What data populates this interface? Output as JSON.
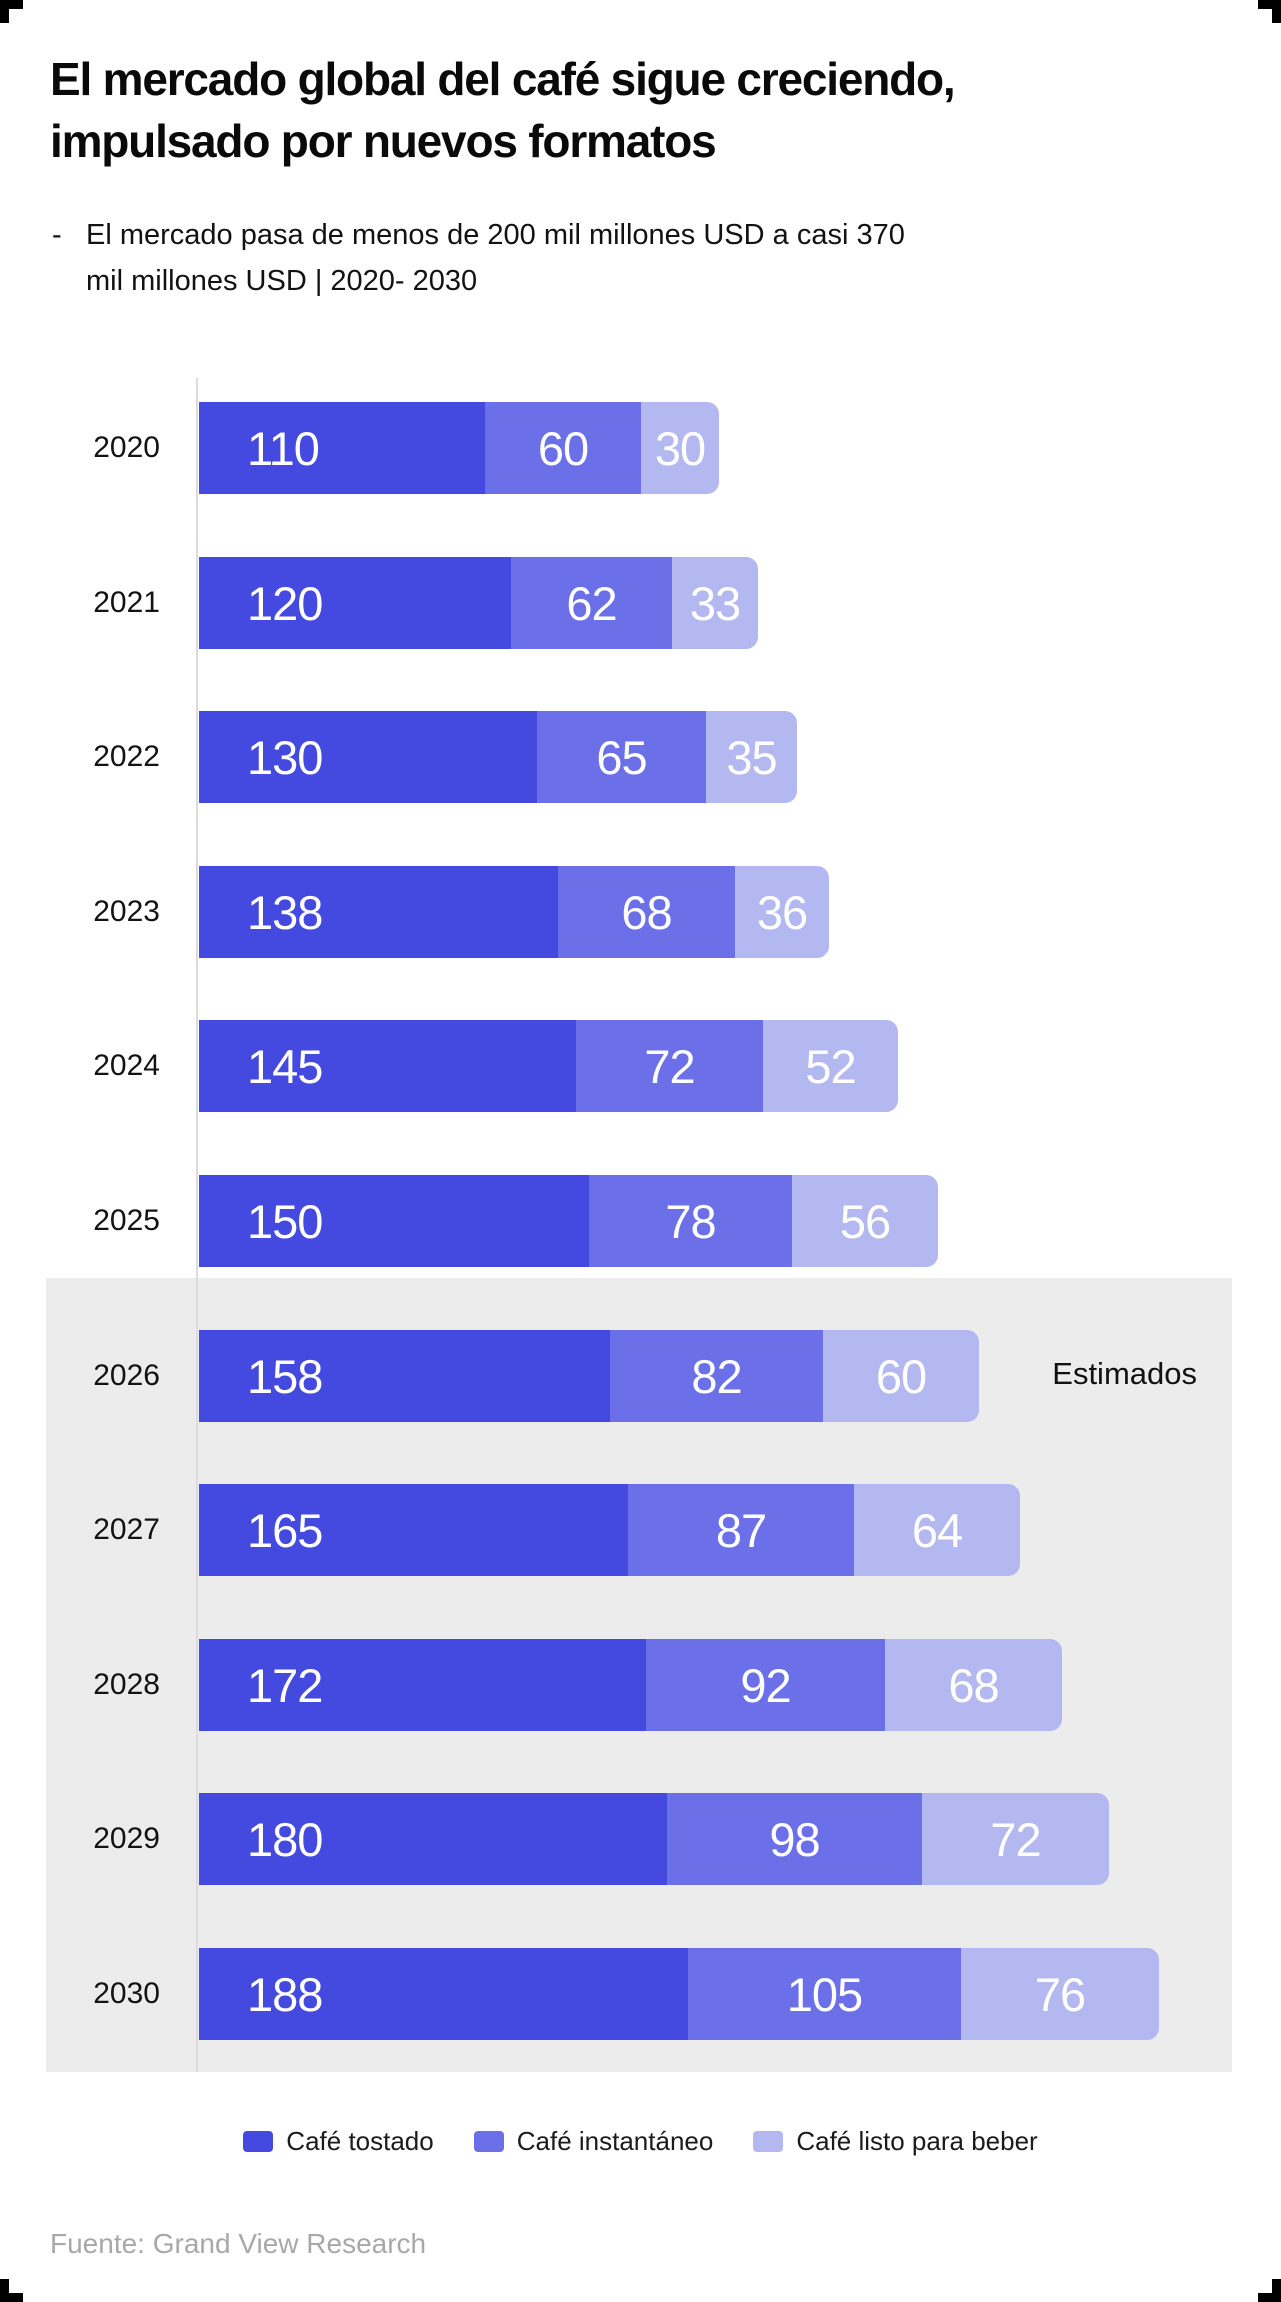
{
  "title": {
    "line1": "El mercado global del café sigue creciendo,",
    "line2": "impulsado por nuevos formatos"
  },
  "subtitle": {
    "bullet": "-",
    "text": "El mercado pasa de menos de 200 mil millones USD a casi 370 mil millones USD | 2020- 2030"
  },
  "chart_data": {
    "type": "bar",
    "orientation": "horizontal",
    "stacked": true,
    "categories": [
      "2020",
      "2021",
      "2022",
      "2023",
      "2024",
      "2025",
      "2026",
      "2027",
      "2028",
      "2029",
      "2030"
    ],
    "series": [
      {
        "name": "Café tostado",
        "color": "#4449E0",
        "values": [
          110,
          120,
          130,
          138,
          145,
          150,
          158,
          165,
          172,
          180,
          188
        ]
      },
      {
        "name": "Café instantáneo",
        "color": "#6B70E9",
        "values": [
          60,
          62,
          65,
          68,
          72,
          78,
          82,
          87,
          92,
          98,
          105
        ]
      },
      {
        "name": "Café listo para beber",
        "color": "#B4B8F1",
        "values": [
          30,
          33,
          35,
          36,
          52,
          56,
          60,
          64,
          68,
          72,
          76
        ]
      }
    ],
    "totals": [
      200,
      215,
      230,
      242,
      269,
      284,
      300,
      316,
      332,
      350,
      369
    ],
    "estimate": {
      "label": "Estimados",
      "from_category": "2026",
      "to_category": "2030"
    },
    "xlim": [
      0,
      369
    ],
    "grid": false,
    "legend_position": "bottom",
    "value_labels": "inside",
    "value_label_color": "#FFFFFF"
  },
  "colors": {
    "estimate_region": "#ECECEC",
    "axis_line": "#DCDCDC",
    "title_text": "#0A0A0A",
    "footer_text": "#A8A8A8"
  },
  "footer": {
    "source": "Fuente: Grand View Research"
  }
}
